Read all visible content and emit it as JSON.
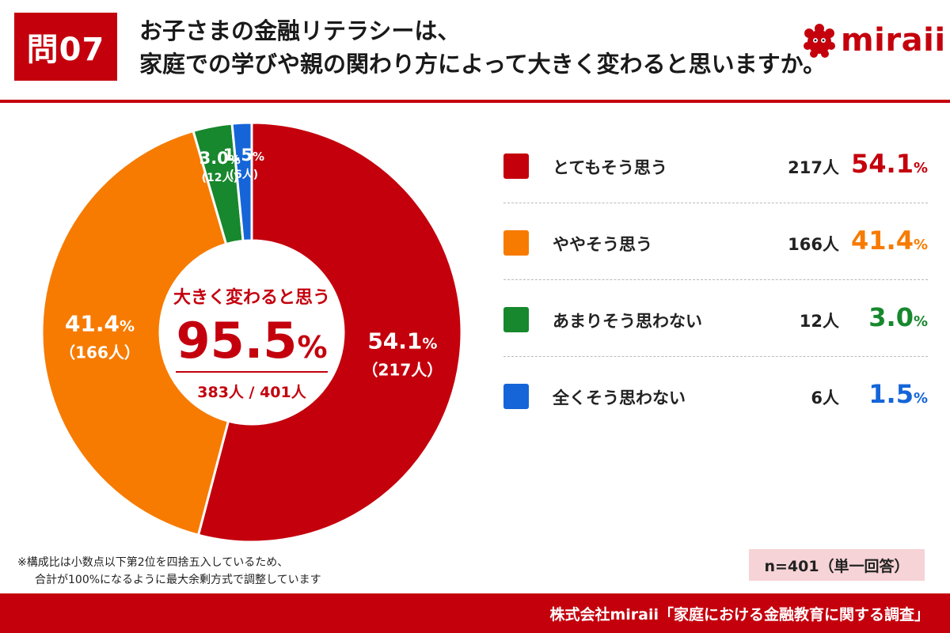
{
  "header": {
    "question_badge": "問07",
    "title_line1": "お子さまの金融リテラシーは、",
    "title_line2": "家庭での学びや親の関わり方によって大きく変わると思いますか。",
    "logo_text": "miraii"
  },
  "colors": {
    "accent": "#c4000d",
    "red": "#c4000d",
    "orange": "#f77b00",
    "green": "#17882d",
    "blue": "#1565d8"
  },
  "chart_data": {
    "type": "pie",
    "series": [
      {
        "name": "とてもそう思う",
        "count": 217,
        "count_label": "217人",
        "value": 54.1,
        "value_text": "54.1",
        "chart_count_label": "（217人）",
        "color": "#c4000d"
      },
      {
        "name": "ややそう思う",
        "count": 166,
        "count_label": "166人",
        "value": 41.4,
        "value_text": "41.4",
        "chart_count_label": "（166人）",
        "color": "#f77b00"
      },
      {
        "name": "あまりそう思わない",
        "count": 12,
        "count_label": "12人",
        "value": 3.0,
        "value_text": "3.0",
        "chart_count_label": "(12人)",
        "color": "#17882d"
      },
      {
        "name": "全くそう思わない",
        "count": 6,
        "count_label": "6人",
        "value": 1.5,
        "value_text": "1.5",
        "chart_count_label": "(6人)",
        "color": "#1565d8"
      }
    ],
    "percent_unit": "%",
    "center": {
      "label": "大きく変わると思う",
      "value_text": "95.5",
      "value_unit": "%",
      "sub": "383人 / 401人"
    }
  },
  "notes": {
    "line1": "※構成比は小数点以下第2位を四捨五入しているため、",
    "line2": "合計が100%になるように最大余剰方式で調整しています"
  },
  "sample": "n=401（単一回答）",
  "footer": "株式会社miraii「家庭における金融教育に関する調査」"
}
